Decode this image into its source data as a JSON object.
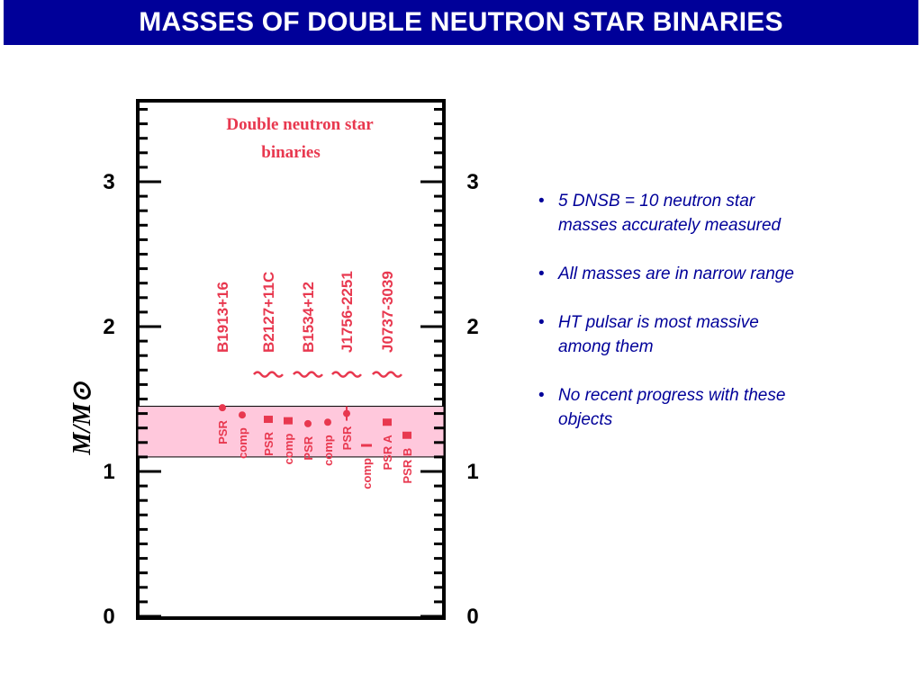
{
  "slide": {
    "title": "MASSES OF DOUBLE NEUTRON STAR BINARIES"
  },
  "bullets": [
    {
      "text": "5 DNSB = 10 neutron star\n  masses accurately measured"
    },
    {
      "text": "All masses are in narrow range"
    },
    {
      "text": "HT pulsar is most massive\n  among them"
    },
    {
      "text": "No recent progress with these\n  objects"
    }
  ],
  "colors": {
    "title_bg": "#000099",
    "title_text": "#ffffff",
    "bullet_text": "#000099",
    "data_red": "#e8384f",
    "band_fill": "#ffc8dc"
  },
  "chart_data": {
    "type": "scatter",
    "title": "Double neutron star binaries",
    "ylabel": "M/M⊙",
    "ylim": [
      0,
      3.6
    ],
    "yticks": [
      0,
      1,
      2,
      3
    ],
    "ytick_labels": [
      "0",
      "1",
      "2",
      "3"
    ],
    "band": {
      "low": 1.1,
      "high": 1.45
    },
    "series": [
      {
        "name": "B1913+16",
        "points": [
          {
            "label": "PSR",
            "y": 1.44
          },
          {
            "label": "comp",
            "y": 1.39
          }
        ]
      },
      {
        "name": "B2127+11C",
        "points": [
          {
            "label": "PSR",
            "y": 1.36
          },
          {
            "label": "comp",
            "y": 1.35
          }
        ]
      },
      {
        "name": "B1534+12",
        "points": [
          {
            "label": "PSR",
            "y": 1.33
          },
          {
            "label": "comp",
            "y": 1.34
          }
        ]
      },
      {
        "name": "J1756-2251",
        "points": [
          {
            "label": "PSR",
            "y": 1.4
          },
          {
            "label": "comp",
            "y": 1.18
          }
        ]
      },
      {
        "name": "J0737-3039",
        "points": [
          {
            "label": "PSR A",
            "y": 1.34
          },
          {
            "label": "PSR B",
            "y": 1.25
          }
        ]
      }
    ]
  }
}
